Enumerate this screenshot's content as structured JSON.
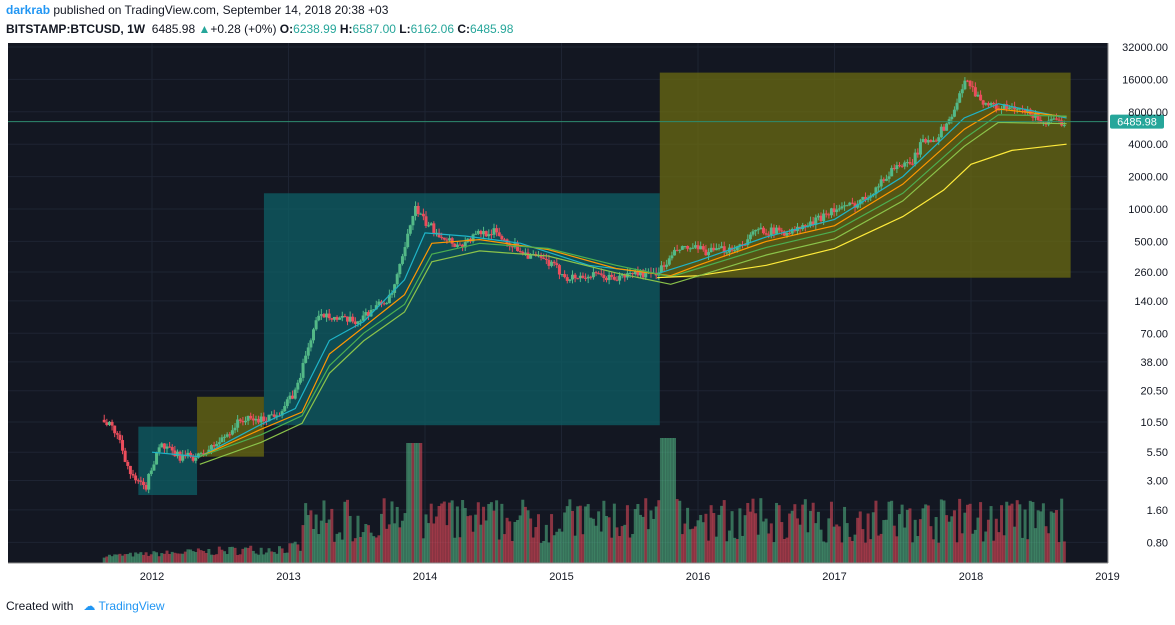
{
  "header": {
    "author": "darkrab",
    "published": "published on TradingView.com, September 14, 2018 20:38 +03",
    "symbol": "BITSTAMP:BTCUSD, 1W",
    "last": "6485.98",
    "change": "+0.28 (+0%)",
    "o_label": "O:",
    "o": "6238.99",
    "h_label": "H:",
    "h": "6587.00",
    "l_label": "L:",
    "l": "6162.06",
    "c_label": "C:",
    "c": "6485.98"
  },
  "footer": {
    "created_with": "Created with",
    "brand": "TradingView"
  },
  "colors": {
    "background": "#131722",
    "up": "#53b987",
    "down": "#eb4d5c",
    "ema_cyan": "#1fb4c8",
    "ema_orange": "#ff9800",
    "ema_green": "#4caf50",
    "ema_lime": "#8bc34a",
    "sma_yellow": "#ffeb3b",
    "zone_teal": "#0e5f66",
    "zone_olive": "#6b6b12",
    "price_line": "#2e8b6f"
  },
  "chart_data": {
    "type": "candlestick",
    "scale": "log",
    "ylim": [
      0.5,
      32000
    ],
    "y_ticks": [
      "32000.00",
      "16000.00",
      "8000.00",
      "4000.00",
      "2000.00",
      "1000.00",
      "500.00",
      "260.00",
      "140.00",
      "70.00",
      "38.00",
      "20.50",
      "10.50",
      "5.50",
      "3.00",
      "1.60",
      "0.80"
    ],
    "y_tick_values": [
      32000,
      16000,
      8000,
      4000,
      2000,
      1000,
      500,
      260,
      140,
      70,
      38,
      20.5,
      10.5,
      5.5,
      3,
      1.6,
      0.8
    ],
    "x_ticks": [
      "2012",
      "2013",
      "2014",
      "2015",
      "2016",
      "2017",
      "2018",
      "2019"
    ],
    "x_tick_values": [
      2012,
      2013,
      2014,
      2015,
      2016,
      2017,
      2018,
      2019
    ],
    "last_price": 6485.98,
    "last_price_label": "6485.98",
    "series": [
      {
        "key": "close",
        "points": [
          [
            2011.65,
            11
          ],
          [
            2011.75,
            8
          ],
          [
            2011.85,
            3.2
          ],
          [
            2011.95,
            2.5
          ],
          [
            2012.05,
            6.5
          ],
          [
            2012.2,
            5
          ],
          [
            2012.35,
            5.0
          ],
          [
            2012.5,
            7
          ],
          [
            2012.65,
            11
          ],
          [
            2012.8,
            11
          ],
          [
            2012.95,
            13.5
          ],
          [
            2013.05,
            20
          ],
          [
            2013.2,
            90
          ],
          [
            2013.28,
            110
          ],
          [
            2013.35,
            95
          ],
          [
            2013.5,
            90
          ],
          [
            2013.62,
            120
          ],
          [
            2013.75,
            150
          ],
          [
            2013.85,
            400
          ],
          [
            2013.92,
            1050
          ],
          [
            2014.0,
            750
          ],
          [
            2014.1,
            600
          ],
          [
            2014.25,
            450
          ],
          [
            2014.4,
            600
          ],
          [
            2014.5,
            620
          ],
          [
            2014.6,
            500
          ],
          [
            2014.75,
            380
          ],
          [
            2014.9,
            320
          ],
          [
            2015.05,
            230
          ],
          [
            2015.25,
            240
          ],
          [
            2015.4,
            225
          ],
          [
            2015.55,
            260
          ],
          [
            2015.65,
            240
          ],
          [
            2015.75,
            290
          ],
          [
            2015.85,
            420
          ],
          [
            2015.95,
            430
          ],
          [
            2016.1,
            400
          ],
          [
            2016.3,
            450
          ],
          [
            2016.45,
            650
          ],
          [
            2016.55,
            620
          ],
          [
            2016.7,
            620
          ],
          [
            2016.85,
            750
          ],
          [
            2016.95,
            950
          ],
          [
            2017.1,
            1050
          ],
          [
            2017.2,
            1200
          ],
          [
            2017.35,
            1800
          ],
          [
            2017.45,
            2600
          ],
          [
            2017.55,
            2500
          ],
          [
            2017.65,
            4300
          ],
          [
            2017.75,
            4700
          ],
          [
            2017.85,
            7000
          ],
          [
            2017.95,
            14000
          ],
          [
            2017.97,
            17000
          ],
          [
            2018.05,
            11000
          ],
          [
            2018.15,
            9000
          ],
          [
            2018.3,
            8500
          ],
          [
            2018.45,
            7600
          ],
          [
            2018.55,
            6300
          ],
          [
            2018.7,
            6485.98
          ]
        ]
      },
      {
        "key": "ema_fast",
        "points": [
          [
            2012.0,
            5.5
          ],
          [
            2012.35,
            5.0
          ],
          [
            2012.8,
            10
          ],
          [
            2013.05,
            14
          ],
          [
            2013.3,
            60
          ],
          [
            2013.55,
            90
          ],
          [
            2013.85,
            220
          ],
          [
            2014.0,
            600
          ],
          [
            2014.3,
            560
          ],
          [
            2014.7,
            480
          ],
          [
            2015.2,
            300
          ],
          [
            2015.7,
            250
          ],
          [
            2016.0,
            330
          ],
          [
            2016.5,
            550
          ],
          [
            2017.0,
            800
          ],
          [
            2017.5,
            2000
          ],
          [
            2017.95,
            7000
          ],
          [
            2018.2,
            9500
          ],
          [
            2018.7,
            7000
          ]
        ]
      },
      {
        "key": "ema_mid",
        "points": [
          [
            2012.35,
            5.0
          ],
          [
            2012.8,
            9
          ],
          [
            2013.1,
            13
          ],
          [
            2013.3,
            45
          ],
          [
            2013.55,
            80
          ],
          [
            2013.85,
            160
          ],
          [
            2014.05,
            480
          ],
          [
            2014.4,
            520
          ],
          [
            2014.9,
            420
          ],
          [
            2015.4,
            280
          ],
          [
            2015.8,
            240
          ],
          [
            2016.0,
            300
          ],
          [
            2016.5,
            500
          ],
          [
            2017.0,
            700
          ],
          [
            2017.5,
            1700
          ],
          [
            2017.95,
            5500
          ],
          [
            2018.2,
            8500
          ],
          [
            2018.7,
            7200
          ]
        ]
      },
      {
        "key": "ema_slow",
        "points": [
          [
            2012.35,
            5.0
          ],
          [
            2012.8,
            8
          ],
          [
            2013.1,
            12
          ],
          [
            2013.3,
            35
          ],
          [
            2013.55,
            70
          ],
          [
            2013.85,
            130
          ],
          [
            2014.05,
            380
          ],
          [
            2014.4,
            480
          ],
          [
            2014.9,
            430
          ],
          [
            2015.4,
            300
          ],
          [
            2015.8,
            235
          ],
          [
            2016.0,
            280
          ],
          [
            2016.5,
            440
          ],
          [
            2017.0,
            620
          ],
          [
            2017.5,
            1400
          ],
          [
            2017.95,
            4500
          ],
          [
            2018.2,
            7500
          ],
          [
            2018.7,
            7300
          ]
        ]
      },
      {
        "key": "sma_long",
        "points": [
          [
            2015.7,
            230
          ],
          [
            2016.0,
            240
          ],
          [
            2016.5,
            300
          ],
          [
            2017.0,
            430
          ],
          [
            2017.5,
            850
          ],
          [
            2017.8,
            1500
          ],
          [
            2018.0,
            2600
          ],
          [
            2018.3,
            3500
          ],
          [
            2018.7,
            4000
          ]
        ]
      }
    ],
    "zones": [
      {
        "x0": 2011.9,
        "x1": 2012.33,
        "y0": 2.2,
        "y1": 9.5,
        "color": "teal"
      },
      {
        "x0": 2012.33,
        "x1": 2012.82,
        "y0": 5.0,
        "y1": 18,
        "color": "olive"
      },
      {
        "x0": 2012.82,
        "x1": 2015.72,
        "y0": 9.8,
        "y1": 1400,
        "color": "teal"
      },
      {
        "x0": 2015.72,
        "x1": 2018.73,
        "y0": 230,
        "y1": 18500,
        "color": "olive"
      }
    ]
  }
}
